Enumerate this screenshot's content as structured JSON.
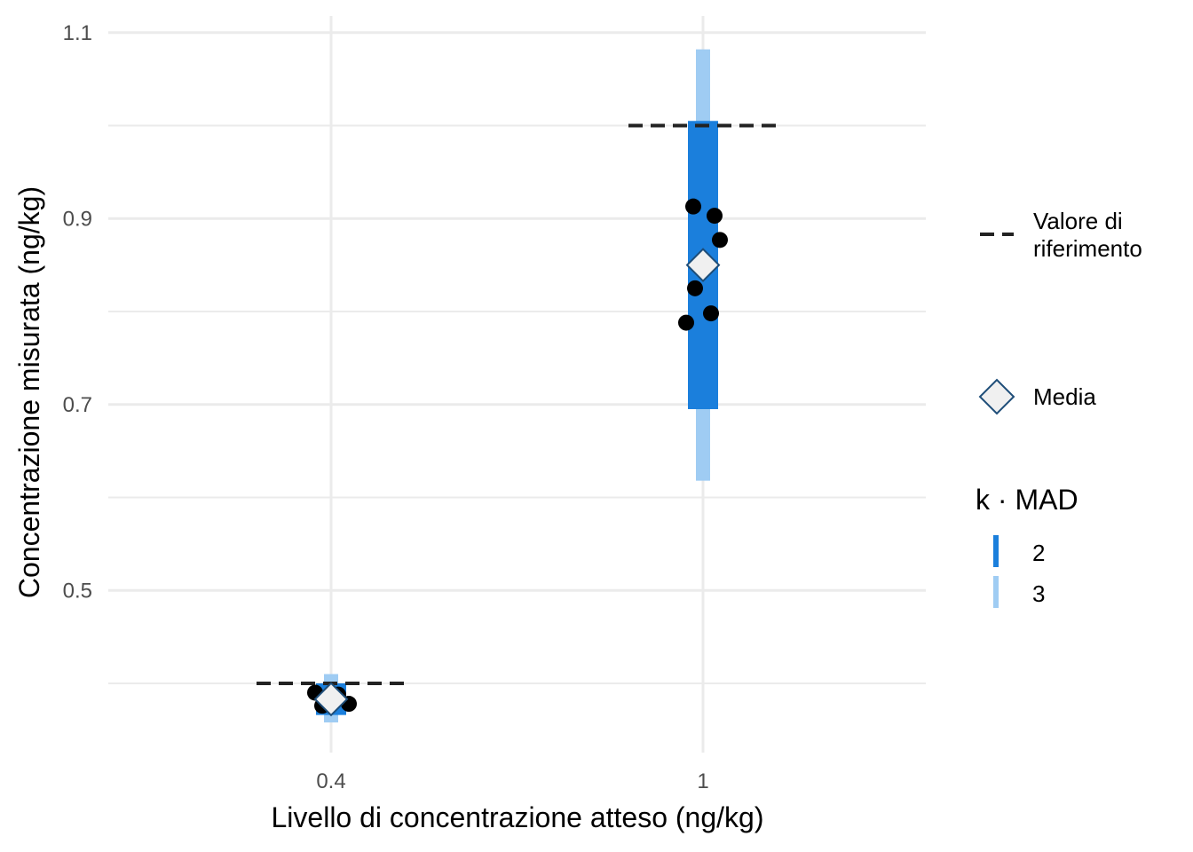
{
  "chart_data": {
    "type": "scatter",
    "xlabel": "Livello di concentrazione atteso (ng/kg)",
    "ylabel": "Concentrazione misurata (ng/kg)",
    "x_tick_labels": [
      "0.4",
      "1"
    ],
    "y_ticks": [
      0.5,
      0.7,
      0.9,
      1.1
    ],
    "y_tick_labels": [
      "0.5",
      "0.7",
      "0.9",
      "1.1"
    ],
    "ylim": [
      0.33,
      1.14
    ],
    "grid": true,
    "groups": [
      {
        "x_label": "0.4",
        "reference": 0.4,
        "mean": 0.383,
        "band_k2": [
          0.366,
          0.4
        ],
        "band_k3": [
          0.358,
          0.41
        ],
        "points": [
          0.39,
          0.388,
          0.381,
          0.378,
          0.376
        ]
      },
      {
        "x_label": "1",
        "reference": 1.0,
        "mean": 0.85,
        "band_k2": [
          0.695,
          1.005
        ],
        "band_k3": [
          0.618,
          1.082
        ],
        "points": [
          0.913,
          0.903,
          0.877,
          0.825,
          0.798,
          0.788
        ]
      }
    ],
    "legend": {
      "reference_label": "Valore di\nriferimento",
      "mean_label": "Media",
      "mad_title": "k · MAD",
      "mad_items": [
        {
          "label": "2",
          "color": "#1b7fdc"
        },
        {
          "label": "3",
          "color": "#9fccf3"
        }
      ],
      "position": "right"
    },
    "colors": {
      "band_k2": "#1b7fdc",
      "band_k3": "#9fccf3",
      "point": "#000000",
      "mean_fill": "#f0f0f0",
      "mean_stroke": "#1f4e79",
      "reference": "#222222",
      "grid": "#ebebeb"
    }
  }
}
